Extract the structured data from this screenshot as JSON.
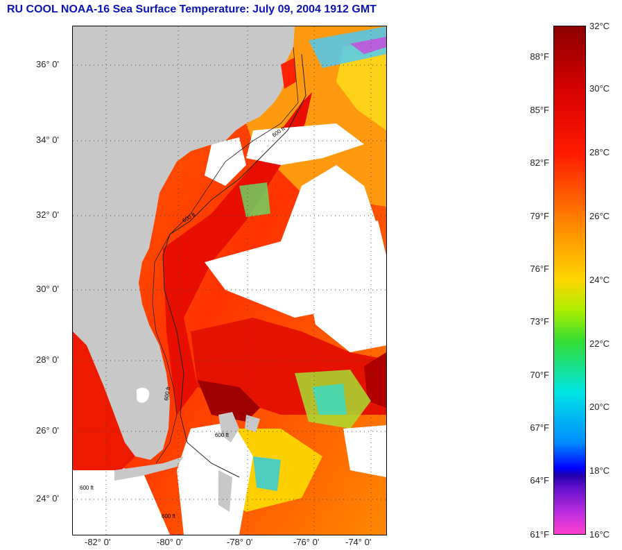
{
  "title": "RU COOL  NOAA-16  Sea Surface Temperature:  July 09, 2004 1912 GMT",
  "map": {
    "lat_labels": [
      "36° 0'",
      "34° 0'",
      "32° 0'",
      "30° 0'",
      "28° 0'",
      "26° 0'",
      "24° 0'"
    ],
    "lon_labels": [
      "-82° 0'",
      "-80° 0'",
      "-78° 0'",
      "-76° 0'",
      "-74° 0'"
    ],
    "contour_label": "600 ft"
  },
  "colorbar": {
    "celsius": [
      "32°C",
      "30°C",
      "28°C",
      "26°C",
      "24°C",
      "22°C",
      "20°C",
      "18°C",
      "16°C"
    ],
    "fahrenheit": [
      "88°F",
      "85°F",
      "82°F",
      "79°F",
      "76°F",
      "73°F",
      "70°F",
      "67°F",
      "64°F",
      "61°F"
    ],
    "colors": [
      "#8b0000",
      "#d40000",
      "#ff1a00",
      "#ff8000",
      "#ffd700",
      "#33dd33",
      "#00e5e5",
      "#0000ff",
      "#6611cc",
      "#ff40cc"
    ]
  }
}
